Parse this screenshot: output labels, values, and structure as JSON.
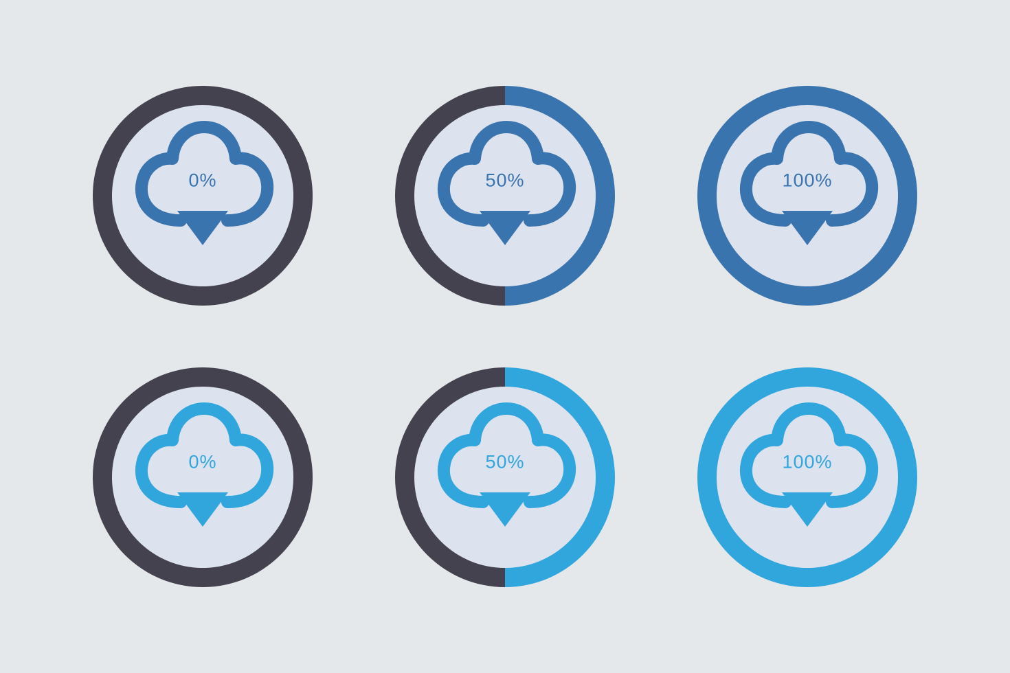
{
  "background_color": "#e4e8ea",
  "inner_fill": "#dde3ee",
  "ring_base_color": "#44424f",
  "rows": [
    {
      "accent": "#3a74ae",
      "cloud_color": "#3a74ae",
      "text_color": "#3a74ae",
      "items": [
        {
          "percent": 0,
          "label": "0%"
        },
        {
          "percent": 50,
          "label": "50%"
        },
        {
          "percent": 100,
          "label": "100%"
        }
      ]
    },
    {
      "accent": "#31a6dd",
      "cloud_color": "#31a6dd",
      "text_color": "#31a6dd",
      "items": [
        {
          "percent": 0,
          "label": "0%"
        },
        {
          "percent": 50,
          "label": "50%"
        },
        {
          "percent": 100,
          "label": "100%"
        }
      ]
    }
  ],
  "geometry": {
    "size": 320,
    "ring_outer_r": 160,
    "ring_inner_r": 132,
    "label_fontsize": 27
  }
}
